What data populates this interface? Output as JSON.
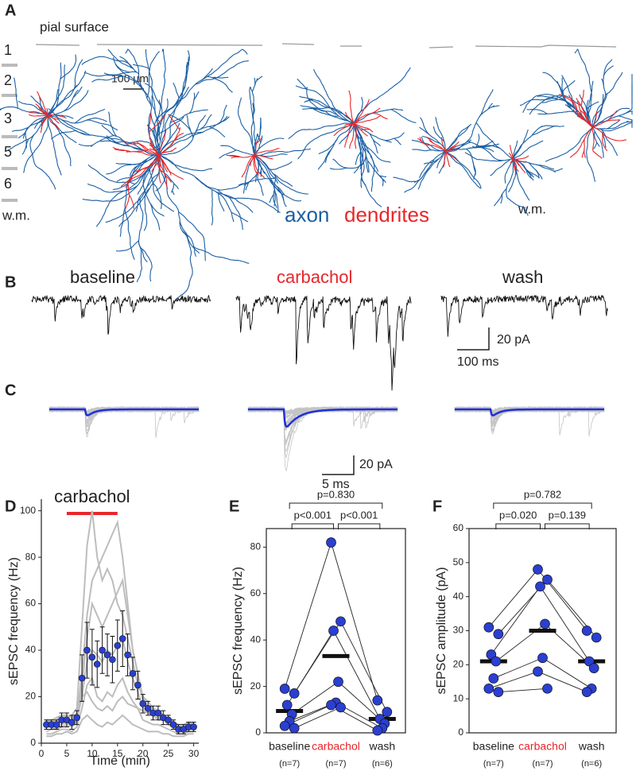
{
  "panel_a": {
    "label": "A",
    "pial_surface": "pial surface",
    "layers": [
      "1",
      "2",
      "3",
      "5",
      "6"
    ],
    "white_matter": "w.m.",
    "white_matter_2": "w.m.",
    "scale": "100 µm",
    "axon": "axon",
    "dendrites": "dendrites"
  },
  "panel_b": {
    "label": "B",
    "conditions": [
      "baseline",
      "carbachol",
      "wash"
    ],
    "scale_y": "20 pA",
    "scale_x": "100 ms"
  },
  "panel_c": {
    "label": "C",
    "scale_y": "20 pA",
    "scale_x": "5 ms"
  },
  "chart_data": [
    {
      "type": "line",
      "panel": "D",
      "ylabel": "sEPSC frequency (Hz)",
      "xlabel": "Time (min)",
      "treatment": {
        "label": "carbachol",
        "start": 5,
        "end": 15,
        "color": "#e8262a"
      },
      "xlim": [
        0,
        31
      ],
      "xticks": [
        0,
        5,
        10,
        15,
        20,
        25,
        30
      ],
      "ylim": [
        0,
        105
      ],
      "yticks": [
        0,
        20,
        40,
        60,
        80,
        100
      ],
      "x": [
        1,
        2,
        3,
        4,
        5,
        6,
        7,
        8,
        9,
        10,
        11,
        12,
        13,
        14,
        15,
        16,
        17,
        18,
        19,
        20,
        21,
        22,
        23,
        24,
        25,
        26,
        27,
        28,
        29,
        30
      ],
      "values": [
        8,
        8,
        8,
        10,
        10,
        9,
        11,
        28,
        40,
        37,
        34,
        40,
        38,
        36,
        42,
        45,
        38,
        30,
        25,
        17,
        15,
        13,
        13,
        11,
        10,
        8,
        6,
        6,
        7,
        7
      ],
      "errors": [
        2,
        2,
        2,
        3,
        3,
        3,
        3,
        10,
        12,
        12,
        10,
        10,
        9,
        10,
        11,
        12,
        9,
        7,
        6,
        4,
        3,
        3,
        3,
        3,
        2,
        2,
        2,
        2,
        2,
        2
      ],
      "color": "#2b3fd0",
      "cell_color": "#bdbdbd",
      "cells": [
        {
          "values": [
            10,
            9,
            10,
            12,
            11,
            12,
            15,
            50,
            85,
            100,
            80,
            70,
            75,
            70,
            60,
            55,
            45,
            35,
            25,
            20,
            18,
            15,
            14,
            12,
            10,
            9,
            8,
            8,
            9,
            8
          ]
        },
        {
          "values": [
            8,
            8,
            9,
            9,
            10,
            10,
            12,
            30,
            55,
            70,
            75,
            80,
            85,
            90,
            95,
            80,
            60,
            40,
            30,
            20,
            15,
            12,
            10,
            10,
            9,
            8,
            7,
            7,
            8,
            8
          ]
        },
        {
          "values": [
            5,
            6,
            6,
            7,
            8,
            7,
            9,
            25,
            45,
            60,
            55,
            50,
            55,
            60,
            65,
            70,
            55,
            40,
            30,
            18,
            15,
            14,
            13,
            12,
            10,
            8,
            6,
            6,
            7,
            6
          ]
        },
        {
          "values": [
            7,
            7,
            6,
            8,
            9,
            8,
            10,
            20,
            35,
            40,
            38,
            35,
            40,
            38,
            42,
            45,
            35,
            28,
            22,
            15,
            14,
            12,
            11,
            10,
            8,
            7,
            5,
            5,
            6,
            6
          ]
        },
        {
          "values": [
            4,
            4,
            5,
            6,
            6,
            5,
            7,
            15,
            25,
            28,
            20,
            18,
            22,
            20,
            25,
            28,
            22,
            18,
            15,
            10,
            9,
            8,
            8,
            7,
            6,
            5,
            4,
            4,
            5,
            5
          ]
        },
        {
          "values": [
            10,
            10,
            11,
            12,
            12,
            11,
            13,
            20,
            22,
            18,
            15,
            14,
            16,
            14,
            18,
            20,
            17,
            16,
            15,
            14,
            13,
            12,
            12,
            11,
            10,
            9,
            8,
            8,
            9,
            9
          ]
        },
        {
          "values": [
            3,
            3,
            4,
            4,
            5,
            4,
            5,
            10,
            12,
            10,
            8,
            7,
            9,
            8,
            10,
            12,
            10,
            8,
            7,
            6,
            5,
            5,
            5,
            4,
            4,
            3,
            3,
            3,
            4,
            4
          ]
        }
      ]
    },
    {
      "type": "strip",
      "panel": "E",
      "ylabel": "sEPSC frequency (Hz)",
      "categories": [
        "baseline",
        "carbachol",
        "wash"
      ],
      "category_notes": [
        "(n=7)",
        "(n=7)",
        "(n=6)"
      ],
      "category_colors": [
        "#222222",
        "#e8262a",
        "#222222"
      ],
      "ylim": [
        0,
        88
      ],
      "yticks": [
        0,
        20,
        40,
        60,
        80
      ],
      "color": "#2b3fd0",
      "values": [
        [
          19,
          17,
          12,
          8,
          5,
          3,
          2
        ],
        [
          82,
          48,
          44,
          22,
          13,
          12,
          11
        ],
        [
          14,
          9,
          6,
          4,
          2,
          1
        ]
      ],
      "means": [
        9.4,
        33.1,
        6
      ],
      "comparisons": [
        {
          "between": [
            "baseline",
            "carbachol"
          ],
          "label": "p<0.001"
        },
        {
          "between": [
            "carbachol",
            "wash"
          ],
          "label": "p<0.001"
        },
        {
          "between": [
            "baseline",
            "wash"
          ],
          "label": "p=0.830"
        }
      ]
    },
    {
      "type": "strip",
      "panel": "F",
      "ylabel": "sEPSC amplitude (pA)",
      "categories": [
        "baseline",
        "carbachol",
        "wash"
      ],
      "category_notes": [
        "(n=7)",
        "(n=7)",
        "(n=6)"
      ],
      "category_colors": [
        "#222222",
        "#e8262a",
        "#222222"
      ],
      "ylim": [
        0,
        60
      ],
      "yticks": [
        0,
        10,
        20,
        30,
        40,
        50,
        60
      ],
      "color": "#2b3fd0",
      "values": [
        [
          31,
          29,
          23,
          21,
          16,
          13,
          12
        ],
        [
          48,
          45,
          43,
          32,
          22,
          18,
          13
        ],
        [
          30,
          28,
          21,
          19,
          13,
          12
        ]
      ],
      "means": [
        21,
        30,
        21
      ],
      "comparisons": [
        {
          "between": [
            "baseline",
            "carbachol"
          ],
          "label": "p=0.020"
        },
        {
          "between": [
            "carbachol",
            "wash"
          ],
          "label": "p=0.139"
        },
        {
          "between": [
            "baseline",
            "wash"
          ],
          "label": "p=0.782"
        }
      ]
    }
  ]
}
